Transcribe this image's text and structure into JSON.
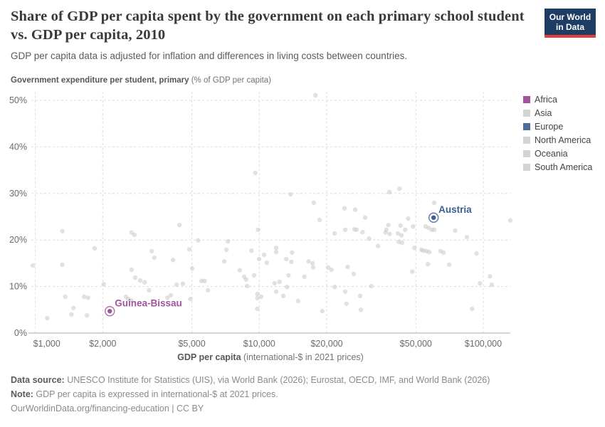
{
  "logo": {
    "line1": "Our World",
    "line2": "in Data"
  },
  "chart_data": {
    "type": "scatter",
    "title": "Share of GDP per capita spent by the government on each primary school student vs. GDP per capita, 2010",
    "subtitle": "GDP per capita data is adjusted for inflation and differences in living costs between countries.",
    "grid": true,
    "y_axis": {
      "title_bold": "Government expenditure per student, primary",
      "title_units": " (% of GDP per capita)",
      "ticks": [
        0,
        10,
        20,
        30,
        40,
        50
      ],
      "tick_labels": [
        "0%",
        "10%",
        "20%",
        "30%",
        "40%",
        "50%"
      ],
      "range": [
        0,
        52
      ]
    },
    "x_axis": {
      "scale": "log",
      "title_bold": "GDP per capita",
      "title_units": " (international-$ in 2021 prices)",
      "ticks": [
        1000,
        2000,
        5000,
        10000,
        20000,
        50000,
        100000
      ],
      "tick_labels": [
        "$1,000",
        "$2,000",
        "$5,000",
        "$10,000",
        "$20,000",
        "$50,000",
        "$100,000"
      ],
      "range": [
        850,
        135000
      ]
    },
    "legend": {
      "position": "right",
      "entries": [
        {
          "label": "Africa",
          "color": "#a2559c"
        },
        {
          "label": "Asia",
          "color": "#d4d4d4"
        },
        {
          "label": "Europe",
          "color": "#4c6a9c"
        },
        {
          "label": "North America",
          "color": "#d4d4d4"
        },
        {
          "label": "Oceania",
          "color": "#d4d4d4"
        },
        {
          "label": "South America",
          "color": "#d4d4d4"
        }
      ]
    },
    "point_color": "#c9c9c9",
    "highlighted_points": [
      {
        "name": "Austria",
        "region": "Europe",
        "gdp": 60000,
        "pct": 24.8,
        "color": "#3d5e94"
      },
      {
        "name": "Guinea-Bissau",
        "region": "Africa",
        "gdp": 2150,
        "pct": 4.7,
        "color": "#a2559c"
      }
    ],
    "points": [
      [
        17800,
        51.1
      ],
      [
        9600,
        34.4
      ],
      [
        13800,
        29.8
      ],
      [
        17500,
        28.0
      ],
      [
        24000,
        26.8
      ],
      [
        26800,
        26.5
      ],
      [
        38100,
        30.3
      ],
      [
        42300,
        31.0
      ],
      [
        60400,
        28.0
      ],
      [
        1320,
        21.9
      ],
      [
        1840,
        18.2
      ],
      [
        975,
        14.5
      ],
      [
        1320,
        14.7
      ],
      [
        2690,
        21.6
      ],
      [
        2770,
        21.1
      ],
      [
        4400,
        23.2
      ],
      [
        4870,
        18.0
      ],
      [
        3310,
        17.6
      ],
      [
        3400,
        16.2
      ],
      [
        4120,
        15.7
      ],
      [
        2690,
        13.6
      ],
      [
        2790,
        11.9
      ],
      [
        2940,
        11.3
      ],
      [
        3080,
        10.9
      ],
      [
        2020,
        10.5
      ],
      [
        3220,
        9.2
      ],
      [
        1360,
        7.8
      ],
      [
        1650,
        7.8
      ],
      [
        1720,
        7.6
      ],
      [
        2540,
        7.8
      ],
      [
        2600,
        7.3
      ],
      [
        2690,
        7.0
      ],
      [
        3890,
        7.6
      ],
      [
        4030,
        8.1
      ],
      [
        1480,
        5.4
      ],
      [
        1450,
        4.0
      ],
      [
        1700,
        3.8
      ],
      [
        1130,
        3.2
      ],
      [
        4270,
        10.4
      ],
      [
        4560,
        10.6
      ],
      [
        4920,
        7.3
      ],
      [
        18600,
        24.3
      ],
      [
        9870,
        22.2
      ],
      [
        21700,
        21.4
      ],
      [
        24200,
        22.2
      ],
      [
        26600,
        22.3
      ],
      [
        5330,
        19.9
      ],
      [
        7240,
        19.7
      ],
      [
        7130,
        17.9
      ],
      [
        9220,
        17.7
      ],
      [
        11900,
        18.3
      ],
      [
        11900,
        17.4
      ],
      [
        10500,
        16.8
      ],
      [
        14000,
        17.3
      ],
      [
        6980,
        15.4
      ],
      [
        9970,
        15.9
      ],
      [
        10800,
        15.1
      ],
      [
        13200,
        15.9
      ],
      [
        13900,
        15.3
      ],
      [
        16600,
        15.4
      ],
      [
        17300,
        15.0
      ],
      [
        17400,
        14.1
      ],
      [
        5020,
        13.9
      ],
      [
        8180,
        13.5
      ],
      [
        8560,
        12.1
      ],
      [
        9480,
        12.4
      ],
      [
        8740,
        11.5
      ],
      [
        13500,
        12.4
      ],
      [
        15900,
        12.1
      ],
      [
        5520,
        11.2
      ],
      [
        5700,
        11.2
      ],
      [
        8820,
        10.1
      ],
      [
        11700,
        10.7
      ],
      [
        12300,
        11.0
      ],
      [
        13300,
        9.9
      ],
      [
        5900,
        9.2
      ],
      [
        11900,
        8.9
      ],
      [
        9800,
        8.4
      ],
      [
        10200,
        7.8
      ],
      [
        9800,
        7.5
      ],
      [
        12800,
        8.0
      ],
      [
        14900,
        6.9
      ],
      [
        9800,
        5.2
      ],
      [
        19100,
        4.7
      ],
      [
        24500,
        6.3
      ],
      [
        21700,
        9.9
      ],
      [
        24200,
        8.9
      ],
      [
        24800,
        14.2
      ],
      [
        26400,
        12.7
      ],
      [
        20300,
        14.1
      ],
      [
        21000,
        13.6
      ],
      [
        29700,
        24.8
      ],
      [
        37700,
        23.2
      ],
      [
        42700,
        23.1
      ],
      [
        46200,
        24.6
      ],
      [
        36900,
        22.2
      ],
      [
        36600,
        21.6
      ],
      [
        38200,
        21.3
      ],
      [
        27200,
        22.2
      ],
      [
        28900,
        21.7
      ],
      [
        30900,
        20.3
      ],
      [
        33900,
        18.7
      ],
      [
        41600,
        21.4
      ],
      [
        43100,
        21.0
      ],
      [
        44800,
        22.2
      ],
      [
        48600,
        22.9
      ],
      [
        41900,
        19.6
      ],
      [
        43400,
        19.4
      ],
      [
        49300,
        18.3
      ],
      [
        52900,
        17.9
      ],
      [
        54000,
        17.7
      ],
      [
        55700,
        17.6
      ],
      [
        57400,
        17.4
      ],
      [
        55300,
        22.9
      ],
      [
        57000,
        22.6
      ],
      [
        58900,
        22.2
      ],
      [
        60400,
        22.2
      ],
      [
        64400,
        17.6
      ],
      [
        66400,
        17.3
      ],
      [
        56600,
        14.8
      ],
      [
        70400,
        14.7
      ],
      [
        74900,
        22.0
      ],
      [
        84500,
        20.6
      ],
      [
        93300,
        17.1
      ],
      [
        107000,
        12.2
      ],
      [
        96600,
        10.7
      ],
      [
        109000,
        10.4
      ],
      [
        132000,
        24.2
      ],
      [
        28200,
        8.0
      ],
      [
        28400,
        5.0
      ],
      [
        31600,
        10.1
      ],
      [
        89100,
        5.2
      ],
      [
        48200,
        13.2
      ]
    ]
  },
  "footer": {
    "data_source_label": "Data source:",
    "data_source_text": " UNESCO Institute for Statistics (UIS), via World Bank (2026); Eurostat, OECD, IMF, and World Bank (2026)",
    "note_label": "Note:",
    "note_text": " GDP per capita is expressed in international-$ at 2021 prices.",
    "url": "OurWorldinData.org/financing-education",
    "separator": " | ",
    "license": "CC BY"
  }
}
